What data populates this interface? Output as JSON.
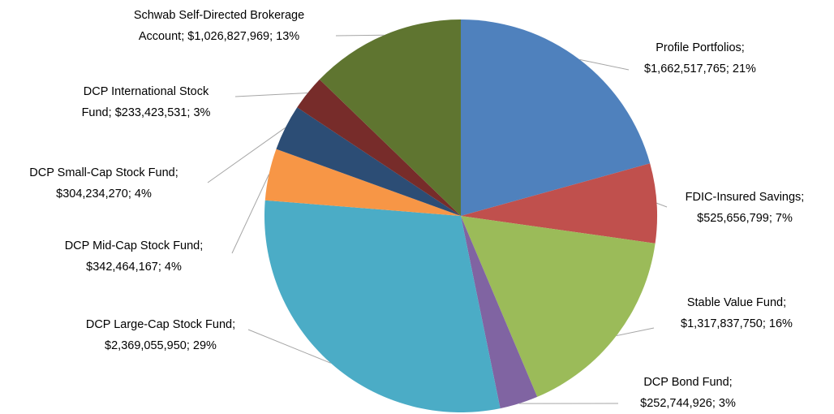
{
  "chart_data": {
    "type": "pie",
    "categories": [
      "Profile Portfolios",
      "FDIC-Insured Savings",
      "Stable Value Fund",
      "DCP Bond Fund",
      "DCP Large-Cap Stock Fund",
      "DCP Mid-Cap Stock Fund",
      "DCP Small-Cap Stock Fund",
      "DCP International Stock Fund",
      "Schwab Self-Directed Brokerage Account"
    ],
    "values": [
      1662517765,
      525656799,
      1317837750,
      252744926,
      2369055950,
      342464167,
      304234270,
      233423531,
      1026827969
    ],
    "value_labels": [
      "$1,662,517,765",
      "$525,656,799",
      "$1,317,837,750",
      "$252,744,926",
      "$2,369,055,950",
      "$342,464,167",
      "$304,234,270",
      "$233,423,531",
      "$1,026,827,969"
    ],
    "percent_labels": [
      "21%",
      "7%",
      "16%",
      "3%",
      "29%",
      "4%",
      "4%",
      "3%",
      "13%"
    ],
    "label_separator": "; ",
    "colors": [
      "#4f81bd",
      "#c0504d",
      "#9bbb59",
      "#8064a2",
      "#4bacc6",
      "#f79646",
      "#2c4d75",
      "#772c2a",
      "#5f7530"
    ]
  }
}
